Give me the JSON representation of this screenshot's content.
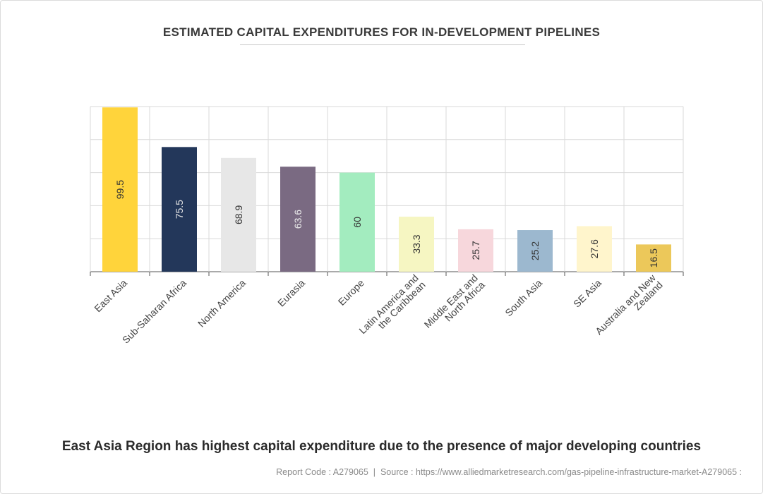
{
  "chart_data": {
    "type": "bar",
    "title": "ESTIMATED CAPITAL EXPENDITURES FOR IN-DEVELOPMENT PIPELINES",
    "categories": [
      [
        "East Asia"
      ],
      [
        "Sub-Saharan Africa"
      ],
      [
        "North America"
      ],
      [
        "Eurasia"
      ],
      [
        "Europe"
      ],
      [
        "Latin America and",
        "the Caribbean"
      ],
      [
        "Middle East and",
        "North Africa"
      ],
      [
        "South Asia"
      ],
      [
        "SE Asia"
      ],
      [
        "Australia and New",
        "Zealand"
      ]
    ],
    "values": [
      99.5,
      75.5,
      68.9,
      63.6,
      60,
      33.3,
      25.7,
      25.2,
      27.6,
      16.5
    ],
    "value_labels": [
      "99.5",
      "75.5",
      "68.9",
      "63.6",
      "60",
      "33.3",
      "25.7",
      "25.2",
      "27.6",
      "16.5"
    ],
    "colors": [
      "#ffd43b",
      "#23375a",
      "#e7e7e7",
      "#7a6a82",
      "#a3ecbf",
      "#f6f6c2",
      "#f7d7dc",
      "#9cb8cf",
      "#fff5cc",
      "#ecc85a"
    ],
    "label_colors": [
      "#333333",
      "#e6e6e6",
      "#333333",
      "#ececec",
      "#333333",
      "#333333",
      "#333333",
      "#333333",
      "#333333",
      "#333333"
    ],
    "ylim": [
      0,
      100
    ],
    "y_ticks": [
      0,
      20,
      40,
      60,
      80,
      100
    ],
    "grid": true,
    "xlabel": "",
    "ylabel": ""
  },
  "caption": "East Asia Region has highest capital expenditure due to the presence of major developing countries",
  "footer": {
    "report_code": "Report Code : A279065",
    "separator": "|",
    "source": "Source : https://www.alliedmarketresearch.com/gas-pipeline-infrastructure-market-A279065 :"
  }
}
